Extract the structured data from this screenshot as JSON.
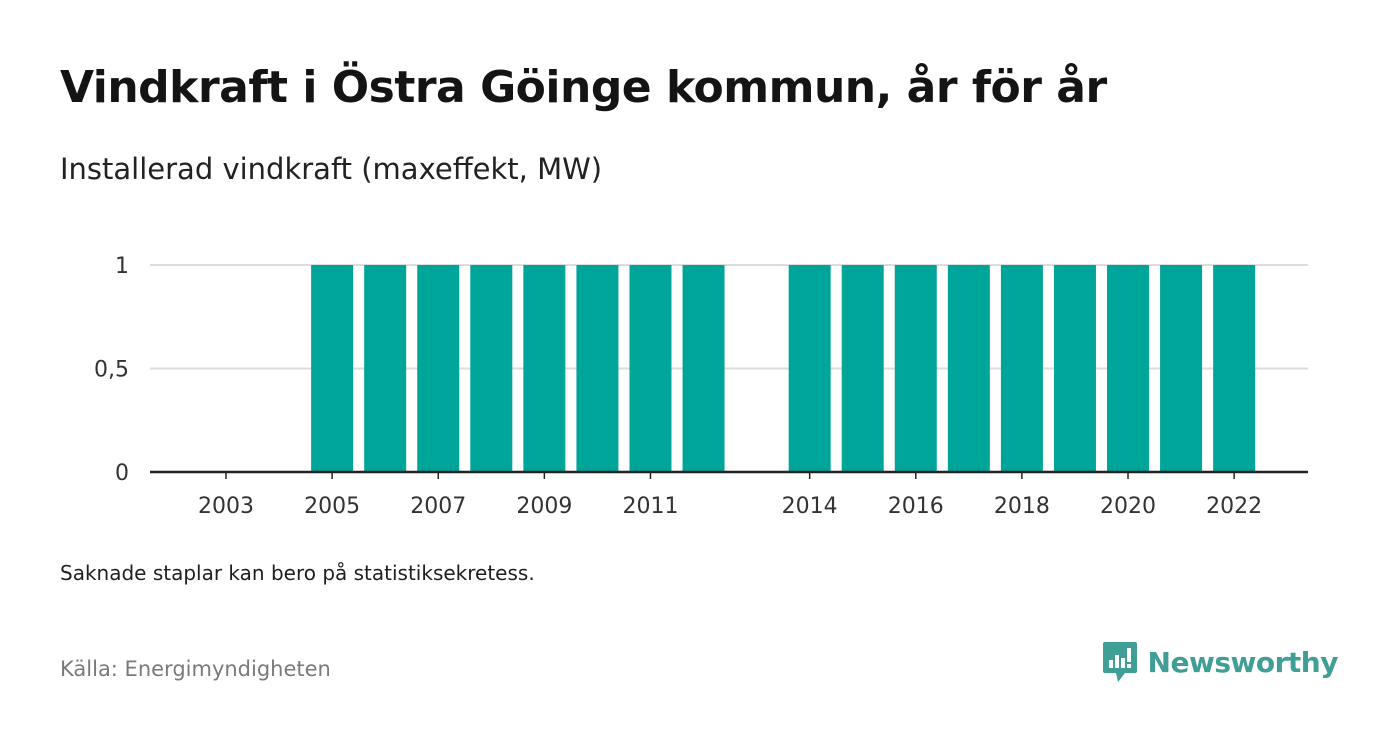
{
  "colors": {
    "bar": "#00A59A",
    "grid": "#dddddd",
    "axis": "#222222",
    "brand": "#3f9e96"
  },
  "title": "Vindkraft i Östra Göinge kommun, år för år",
  "subtitle": "Installerad vindkraft (maxeffekt, MW)",
  "footnote": "Saknade staplar kan bero på statistiksekretess.",
  "source": "Källa: Energimyndigheten",
  "brand": {
    "name": "Newsworthy",
    "icon": "newsworthy-logo-icon"
  },
  "chart_data": {
    "type": "bar",
    "categories": [
      "2003",
      "2004",
      "2005",
      "2006",
      "2007",
      "2008",
      "2009",
      "2010",
      "2011",
      "2012",
      "2014",
      "2015",
      "2016",
      "2017",
      "2018",
      "2019",
      "2020",
      "2021",
      "2022"
    ],
    "values": [
      null,
      null,
      1,
      1,
      1,
      1,
      1,
      1,
      1,
      1,
      1,
      1,
      1,
      1,
      1,
      1,
      1,
      1,
      1
    ],
    "x_tick_labels": [
      "2003",
      "2005",
      "2007",
      "2009",
      "2011",
      "2014",
      "2016",
      "2018",
      "2020",
      "2022"
    ],
    "y_ticks": [
      0,
      0.5,
      1
    ],
    "y_tick_labels": [
      "0",
      "0,5",
      "1"
    ],
    "ylim": [
      0,
      1
    ],
    "grid": true,
    "legend": "none"
  }
}
